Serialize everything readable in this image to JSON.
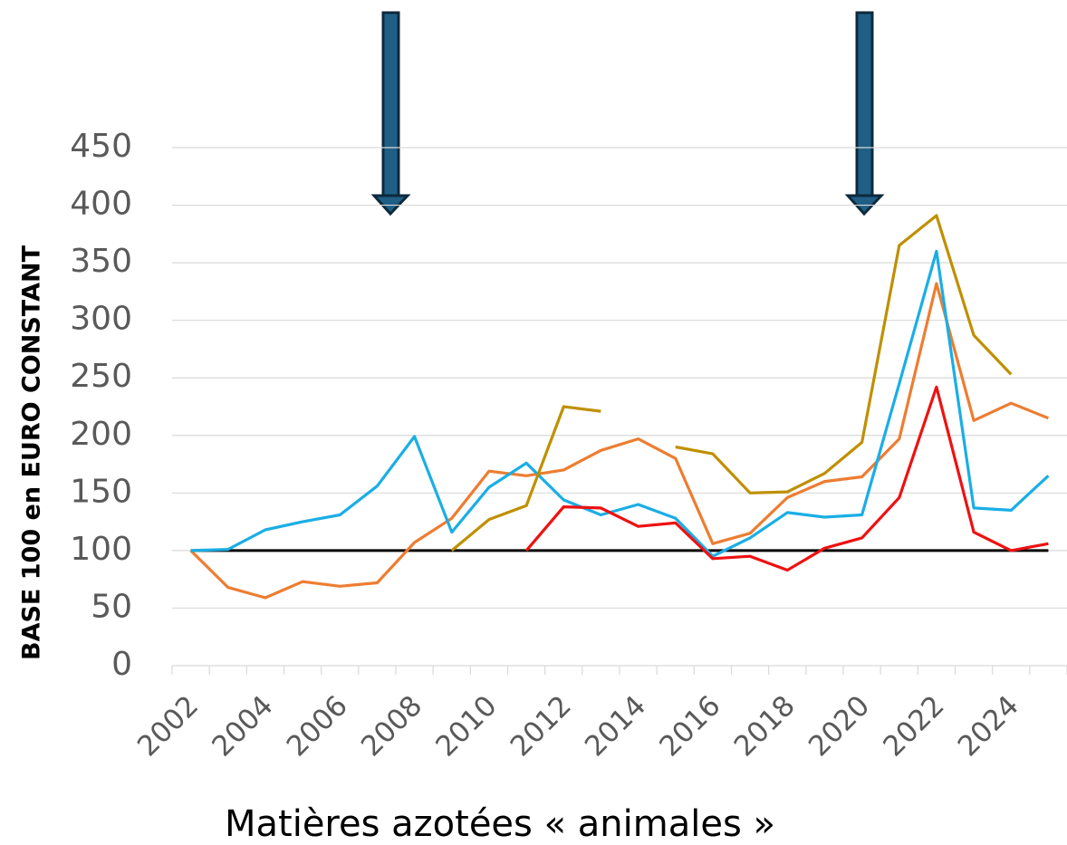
{
  "chart_data": {
    "type": "line",
    "title": "Matières azotées « animales »",
    "ylabel": "BASE 100 en EURO CONSTANT",
    "categories": [
      "2002",
      null,
      "2004",
      null,
      "2006",
      null,
      "2008",
      null,
      "2010",
      null,
      "2012",
      null,
      "2014",
      null,
      "2016",
      null,
      "2018",
      null,
      "2020",
      null,
      "2022",
      null,
      "2024",
      null
    ],
    "series": [
      {
        "color": "#ed7d31",
        "values": [
          100,
          68,
          59,
          73,
          69,
          72,
          107,
          128,
          169,
          165,
          170,
          187,
          197,
          180,
          106,
          115,
          146,
          160,
          164,
          197,
          332,
          213,
          228,
          215
        ]
      },
      {
        "color": "#1aaee5",
        "values": [
          100,
          101,
          118,
          125,
          131,
          156,
          199,
          116,
          155,
          176,
          144,
          131,
          140,
          128,
          95,
          111,
          133,
          129,
          131,
          245,
          360,
          137,
          135,
          165
        ]
      },
      {
        "color": "#bf9000",
        "values": [
          null,
          null,
          null,
          null,
          null,
          null,
          null,
          100,
          127,
          139,
          225,
          221,
          null,
          190,
          184,
          150,
          151,
          167,
          194,
          365,
          391,
          287,
          253,
          null
        ]
      },
      {
        "color": "#ee1111",
        "values": [
          null,
          null,
          null,
          null,
          null,
          null,
          null,
          null,
          null,
          100,
          138,
          137,
          121,
          124,
          93,
          95,
          83,
          102,
          111,
          146,
          242,
          116,
          100,
          106
        ]
      }
    ],
    "reference_line": {
      "value": 100,
      "color": "#000000"
    },
    "ylim": [
      0,
      450
    ],
    "yticks": [
      0,
      50,
      100,
      150,
      200,
      250,
      300,
      350,
      400,
      450
    ],
    "grid": true
  }
}
